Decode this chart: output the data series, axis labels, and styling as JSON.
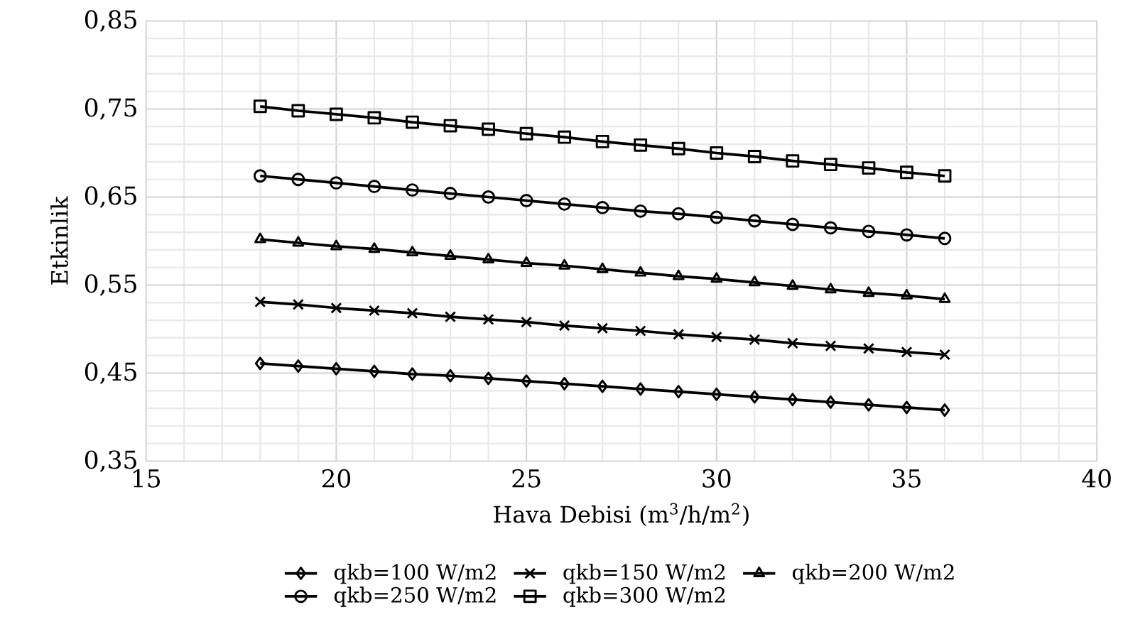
{
  "chart_data": {
    "type": "line",
    "xlabel": "Hava Debisi (m$^{3}$/h/m$^{2}$)",
    "ylabel": "Etkinlik",
    "x": [
      18,
      19,
      20,
      21,
      22,
      23,
      24,
      25,
      26,
      27,
      28,
      29,
      30,
      31,
      32,
      33,
      34,
      35,
      36
    ],
    "series": [
      {
        "name": "qkb=100 W/m2",
        "color": "#000000",
        "marker": "diamond",
        "values": [
          0.461,
          0.458,
          0.455,
          0.452,
          0.449,
          0.447,
          0.444,
          0.441,
          0.438,
          0.435,
          0.432,
          0.429,
          0.426,
          0.423,
          0.42,
          0.417,
          0.414,
          0.411,
          0.408
        ]
      },
      {
        "name": "qkb=150 W/m2",
        "color": "#000000",
        "marker": "cross",
        "values": [
          0.531,
          0.528,
          0.524,
          0.521,
          0.518,
          0.514,
          0.511,
          0.508,
          0.504,
          0.501,
          0.498,
          0.494,
          0.491,
          0.488,
          0.484,
          0.481,
          0.478,
          0.474,
          0.471
        ]
      },
      {
        "name": "qkb=200 W/m2",
        "color": "#000000",
        "marker": "triangle",
        "values": [
          0.602,
          0.598,
          0.594,
          0.591,
          0.587,
          0.583,
          0.579,
          0.575,
          0.572,
          0.568,
          0.564,
          0.56,
          0.557,
          0.553,
          0.549,
          0.545,
          0.541,
          0.538,
          0.534
        ]
      },
      {
        "name": "qkb=250 W/m2",
        "color": "#000000",
        "marker": "circle",
        "values": [
          0.674,
          0.67,
          0.666,
          0.662,
          0.658,
          0.654,
          0.65,
          0.646,
          0.642,
          0.638,
          0.634,
          0.631,
          0.627,
          0.623,
          0.619,
          0.615,
          0.611,
          0.607,
          0.603
        ]
      },
      {
        "name": "qkb=300 W/m2",
        "color": "#000000",
        "marker": "square",
        "values": [
          0.753,
          0.748,
          0.744,
          0.74,
          0.735,
          0.731,
          0.727,
          0.722,
          0.718,
          0.713,
          0.709,
          0.705,
          0.7,
          0.696,
          0.691,
          0.687,
          0.683,
          0.678,
          0.674
        ]
      }
    ],
    "xlim": [
      15,
      40
    ],
    "xticks": [
      15,
      20,
      25,
      30,
      35,
      40
    ],
    "ylim": [
      0.35,
      0.85
    ],
    "yticks": [
      {
        "value": 0.35,
        "label": "0,35"
      },
      {
        "value": 0.45,
        "label": "0,45"
      },
      {
        "value": 0.55,
        "label": "0,55"
      },
      {
        "value": 0.65,
        "label": "0,65"
      },
      {
        "value": 0.75,
        "label": "0,75"
      },
      {
        "value": 0.85,
        "label": "0,85"
      }
    ],
    "grid": true,
    "legend": "bottom"
  }
}
